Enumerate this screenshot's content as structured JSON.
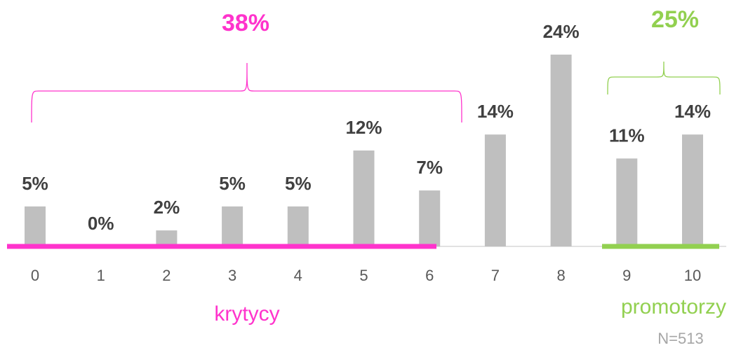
{
  "chart_data": {
    "type": "bar",
    "categories": [
      "0",
      "1",
      "2",
      "3",
      "4",
      "5",
      "6",
      "7",
      "8",
      "9",
      "10"
    ],
    "values": [
      5,
      0,
      2,
      5,
      5,
      12,
      7,
      14,
      24,
      11,
      14
    ],
    "value_labels": [
      "5%",
      "0%",
      "2%",
      "5%",
      "5%",
      "12%",
      "7%",
      "14%",
      "24%",
      "11%",
      "14%"
    ],
    "color": "#bfbfbf",
    "groups": [
      {
        "label": "krytycy",
        "total": "38%",
        "color": "#ff33cc"
      },
      {
        "label": "promotorzy",
        "total": "25%",
        "color": "#92d050"
      }
    ],
    "note": "N=513"
  }
}
